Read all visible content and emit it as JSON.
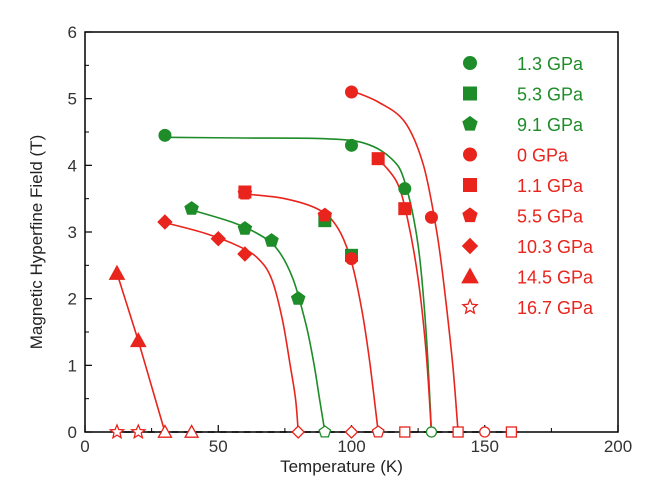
{
  "chart_data": {
    "type": "scatter",
    "xlabel": "Temperature (K)",
    "ylabel": "Magnetic Hyperfine Field (T)",
    "xlim": [
      0,
      200
    ],
    "ylim": [
      0,
      6
    ],
    "xticks": [
      0,
      50,
      100,
      150,
      200
    ],
    "yticks": [
      0,
      1,
      2,
      3,
      4,
      5,
      6
    ],
    "grid": false,
    "legend_position": "right",
    "baseline": {
      "y": 0,
      "style": "dashed",
      "color": "#000000"
    },
    "series": [
      {
        "name": "1.3 GPa",
        "color": "#1e8c28",
        "marker": "circle",
        "fill": "filled",
        "x": [
          30,
          100,
          120
        ],
        "y": [
          4.45,
          4.3,
          3.65
        ],
        "fit": [
          [
            30,
            4.42
          ],
          [
            60,
            4.41
          ],
          [
            90,
            4.4
          ],
          [
            105,
            4.33
          ],
          [
            115,
            4.1
          ],
          [
            120,
            3.75
          ],
          [
            125,
            2.8
          ],
          [
            128,
            1.5
          ],
          [
            130,
            0
          ]
        ],
        "zero_points": [
          130
        ]
      },
      {
        "name": "5.3 GPa",
        "color": "#1e8c28",
        "marker": "square",
        "fill": "filled",
        "x": [
          90,
          100
        ],
        "y": [
          3.17,
          2.65
        ],
        "fit": [],
        "zero_points": []
      },
      {
        "name": "9.1 GPa",
        "color": "#1e8c28",
        "marker": "pentagon",
        "fill": "filled",
        "x": [
          40,
          60,
          70,
          80
        ],
        "y": [
          3.35,
          3.05,
          2.87,
          2.0
        ],
        "fit": [
          [
            40,
            3.33
          ],
          [
            55,
            3.15
          ],
          [
            65,
            2.97
          ],
          [
            72,
            2.75
          ],
          [
            78,
            2.3
          ],
          [
            83,
            1.6
          ],
          [
            86,
            1.0
          ],
          [
            88,
            0.5
          ],
          [
            90,
            0
          ]
        ],
        "zero_points": [
          90
        ]
      },
      {
        "name": "0  GPa",
        "color": "#e8241c",
        "marker": "circle",
        "fill": "filled",
        "x": [
          100,
          130
        ],
        "y": [
          5.1,
          3.22
        ],
        "fit": [
          [
            100,
            5.12
          ],
          [
            110,
            4.95
          ],
          [
            120,
            4.65
          ],
          [
            127,
            4.0
          ],
          [
            132,
            3.0
          ],
          [
            135,
            2.1
          ],
          [
            138,
            1.0
          ],
          [
            140,
            0
          ]
        ],
        "zero_points": [
          140,
          150
        ]
      },
      {
        "name": "1.1 GPa",
        "color": "#e8241c",
        "marker": "square",
        "fill": "filled",
        "x": [
          110,
          120
        ],
        "y": [
          4.1,
          3.35
        ],
        "fit": [
          [
            110,
            4.1
          ],
          [
            117,
            3.75
          ],
          [
            121,
            3.2
          ],
          [
            125,
            2.3
          ],
          [
            128,
            1.2
          ],
          [
            130,
            0
          ]
        ],
        "zero_points": [
          120,
          140,
          160
        ]
      },
      {
        "name": "5.5 GPa",
        "color": "#e8241c",
        "marker": "pentagon",
        "fill": "filled",
        "x": [
          60,
          90
        ],
        "y": [
          3.58,
          3.25
        ],
        "fit": [
          [
            60,
            3.57
          ],
          [
            75,
            3.5
          ],
          [
            88,
            3.33
          ],
          [
            95,
            3.05
          ],
          [
            100,
            2.55
          ],
          [
            104,
            1.8
          ],
          [
            107,
            1.0
          ],
          [
            110,
            0
          ]
        ],
        "zero_points": [
          110
        ]
      },
      {
        "name": "10.3 GPa",
        "color": "#e8241c",
        "marker": "diamond",
        "fill": "filled",
        "x": [
          30,
          50,
          60
        ],
        "y": [
          3.15,
          2.9,
          2.67
        ],
        "fit": [
          [
            30,
            3.14
          ],
          [
            45,
            2.98
          ],
          [
            58,
            2.78
          ],
          [
            65,
            2.6
          ],
          [
            70,
            2.3
          ],
          [
            74,
            1.7
          ],
          [
            77,
            1.0
          ],
          [
            79,
            0.5
          ],
          [
            80,
            0
          ]
        ],
        "zero_points": [
          80,
          100
        ]
      },
      {
        "name": "14.5 GPa",
        "color": "#e8241c",
        "marker": "triangle",
        "fill": "filled",
        "x": [
          12,
          20
        ],
        "y": [
          2.38,
          1.37
        ],
        "fit": [
          [
            12,
            2.38
          ],
          [
            20,
            1.37
          ],
          [
            30,
            0
          ]
        ],
        "zero_points": [
          30,
          40
        ]
      },
      {
        "name": "16.7 GPa",
        "color": "#e8241c",
        "marker": "star",
        "fill": "open",
        "x": [
          12,
          20
        ],
        "y": [
          0,
          0
        ],
        "fit": [],
        "zero_points": []
      }
    ],
    "extra_points": [
      {
        "series": "5.3 GPa",
        "x": 60,
        "y": 3.6,
        "marker": "square",
        "color": "#e8241c",
        "fill": "filled"
      },
      {
        "series": "5.5 GPa",
        "x": 100,
        "y": 2.6,
        "marker": "circle",
        "color": "#e8241c",
        "fill": "filled"
      }
    ]
  }
}
